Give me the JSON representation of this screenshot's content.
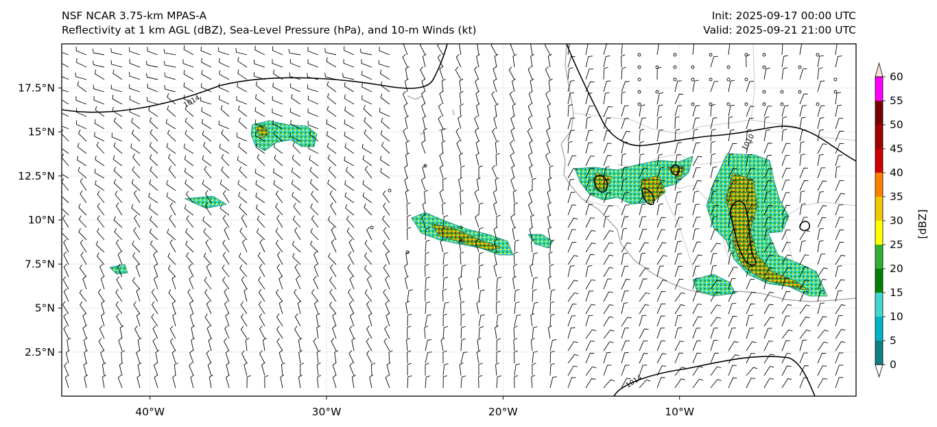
{
  "header": {
    "model": "NSF NCAR 3.75-km MPAS-A",
    "fields": "Reflectivity at 1 km AGL (dBZ), Sea-Level Pressure (hPa), and 10-m Winds (kt)",
    "init": "Init: 2025-09-17 00:00 UTC",
    "valid": "Valid: 2025-09-21 21:00 UTC"
  },
  "map": {
    "lon_range": [
      -45,
      0
    ],
    "lat_range": [
      0,
      20
    ],
    "lat_ticks": [
      {
        "value": 2.5,
        "label": "2.5°N"
      },
      {
        "value": 5,
        "label": "5°N"
      },
      {
        "value": 7.5,
        "label": "7.5°N"
      },
      {
        "value": 10,
        "label": "10°N"
      },
      {
        "value": 12.5,
        "label": "12.5°N"
      },
      {
        "value": 15,
        "label": "15°N"
      },
      {
        "value": 17.5,
        "label": "17.5°N"
      }
    ],
    "lon_ticks": [
      {
        "value": -40,
        "label": "40°W"
      },
      {
        "value": -30,
        "label": "30°W"
      },
      {
        "value": -20,
        "label": "20°W"
      },
      {
        "value": -10,
        "label": "10°W"
      }
    ],
    "isobars": [
      {
        "value": 1014,
        "label": "1014",
        "where": "north"
      },
      {
        "value": 1010,
        "label": "1010",
        "where": "africa"
      },
      {
        "value": 1014,
        "label": "1014",
        "where": "south"
      }
    ],
    "gridlines": true,
    "coastline_color": "#aaaaaa",
    "isobar_color": "#000000"
  },
  "colorbar": {
    "label": "[dBZ]",
    "ticks": [
      "0",
      "5",
      "10",
      "15",
      "20",
      "25",
      "30",
      "35",
      "40",
      "45",
      "50",
      "55",
      "60"
    ],
    "colors": [
      "#ffffff",
      "#0f8080",
      "#00b4c8",
      "#40d8d0",
      "#008000",
      "#30b030",
      "#ffff00",
      "#f0c800",
      "#ff8000",
      "#d00000",
      "#a00000",
      "#780000",
      "#ff00ff",
      "#ffe0d8"
    ]
  }
}
